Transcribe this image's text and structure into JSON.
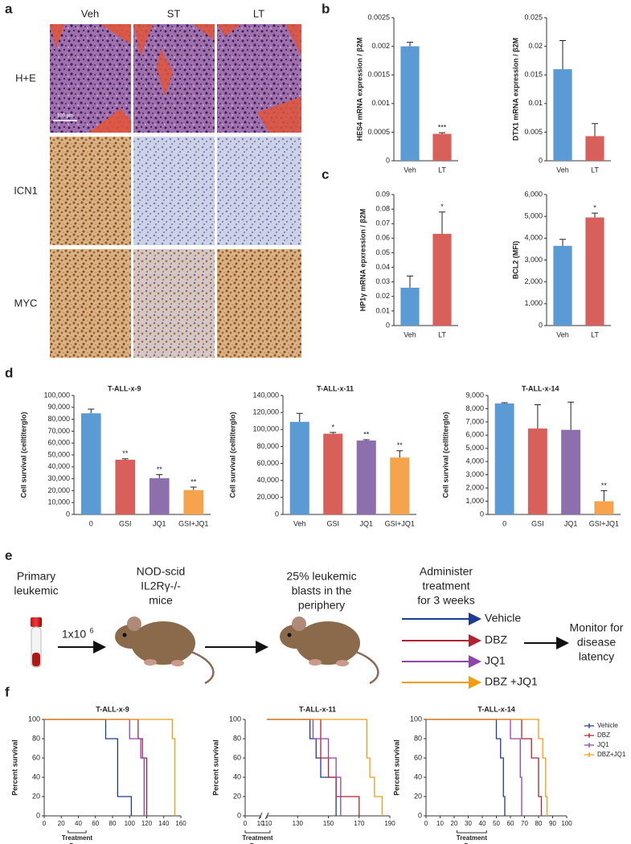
{
  "panel_labels": [
    "a",
    "b",
    "c",
    "d",
    "e",
    "f"
  ],
  "histology": {
    "columns": [
      "Veh",
      "ST",
      "LT"
    ],
    "rows": [
      "H+E",
      "ICN1",
      "MYC"
    ],
    "scale_bar": "100 µm"
  },
  "diagram": {
    "source": [
      "Primary",
      "leukemic"
    ],
    "mice": [
      "NOD-scid",
      "IL2Rγ-/-",
      "mice"
    ],
    "dose": "1x10",
    "dose_exp": "6",
    "engraft": [
      "25% leukemic",
      "blasts in the",
      "periphery"
    ],
    "treat": [
      "Administer",
      "treatment",
      "for 3 weeks"
    ],
    "arms": [
      "Vehicle",
      "DBZ",
      "JQ1",
      "DBZ +JQ1"
    ],
    "outcome": [
      "Monitor for",
      "disease",
      "latency"
    ]
  },
  "chart_data": [
    {
      "type": "bar",
      "ylabel": "HES4 mRNA expression / β2M",
      "categories": [
        "Veh",
        "LT"
      ],
      "values": [
        0.002,
        0.00047
      ],
      "errors": [
        7e-05,
        2e-05
      ],
      "colors": [
        "#5b9bd5",
        "#d9605a"
      ],
      "annotations": [
        {
          "index": 1,
          "text": "***"
        }
      ],
      "ylim": [
        0,
        0.0025
      ],
      "yticks": [
        0,
        0.0005,
        0.001,
        0.0015,
        0.002,
        0.0025
      ]
    },
    {
      "type": "bar",
      "ylabel": "DTX1 mRNA expression / β2M",
      "categories": [
        "Veh",
        "LT"
      ],
      "values": [
        0.016,
        0.0043
      ],
      "errors": [
        0.005,
        0.0022
      ],
      "colors": [
        "#5b9bd5",
        "#d9605a"
      ],
      "ylim": [
        0,
        0.025
      ],
      "yticks": [
        0,
        0.005,
        0.01,
        0.015,
        0.02,
        0.025
      ]
    },
    {
      "type": "bar",
      "ylabel": "HP1γ mRNA epxression / β2M",
      "categories": [
        "Veh",
        "LT"
      ],
      "values": [
        0.026,
        0.063
      ],
      "errors": [
        0.008,
        0.015
      ],
      "colors": [
        "#5b9bd5",
        "#d9605a"
      ],
      "annotations": [
        {
          "index": 1,
          "text": "*"
        }
      ],
      "ylim": [
        0,
        0.09
      ],
      "yticks": [
        0,
        0.01,
        0.02,
        0.03,
        0.04,
        0.05,
        0.06,
        0.07,
        0.08,
        0.09
      ]
    },
    {
      "type": "bar",
      "ylabel": "BCL2 (MFI)",
      "categories": [
        "Veh",
        "LT"
      ],
      "values": [
        3650,
        4950
      ],
      "errors": [
        300,
        200
      ],
      "colors": [
        "#5b9bd5",
        "#d9605a"
      ],
      "annotations": [
        {
          "index": 1,
          "text": "*"
        }
      ],
      "ylim": [
        0,
        6000
      ],
      "yticks": [
        0,
        {
          "value": 1000,
          "label": "1,000"
        },
        {
          "value": 2000,
          "label": "2,000"
        },
        {
          "value": 3000,
          "label": "3,000"
        },
        {
          "value": 4000,
          "label": "4,000"
        },
        {
          "value": 5000,
          "label": "5,000"
        },
        {
          "value": 6000,
          "label": "6,000"
        }
      ]
    },
    {
      "type": "bar",
      "title": "T-ALL-x-9",
      "ylabel": "Cell survival (celltiterglo)",
      "categories": [
        "0",
        "GSI",
        "JQ1",
        "GSI+JQ1"
      ],
      "values": [
        85000,
        46000,
        30500,
        20500
      ],
      "errors": [
        3500,
        800,
        3000,
        2500
      ],
      "colors": [
        "#5b9bd5",
        "#d9605a",
        "#8e6fad",
        "#f7a34b"
      ],
      "annotations": [
        {
          "index": 1,
          "text": "**"
        },
        {
          "index": 2,
          "text": "**"
        },
        {
          "index": 3,
          "text": "**"
        }
      ],
      "ylim": [
        0,
        100000
      ],
      "yticks": [
        0,
        {
          "value": 10000,
          "label": "10,000"
        },
        {
          "value": 20000,
          "label": "20,000"
        },
        {
          "value": 30000,
          "label": "30,000"
        },
        {
          "value": 40000,
          "label": "40,000"
        },
        {
          "value": 50000,
          "label": "50,000"
        },
        {
          "value": 60000,
          "label": "60,000"
        },
        {
          "value": 70000,
          "label": "70,000"
        },
        {
          "value": 80000,
          "label": "80,000"
        },
        {
          "value": 90000,
          "label": "90,000"
        },
        {
          "value": 100000,
          "label": "100,000"
        }
      ]
    },
    {
      "type": "bar",
      "title": "T-ALL-x-11",
      "ylabel": "Cell survival (celltiterglo)",
      "categories": [
        "Veh",
        "GSI",
        "JQ1",
        "GSI+JQ1"
      ],
      "values": [
        109000,
        95000,
        87000,
        67000
      ],
      "errors": [
        10000,
        1500,
        1000,
        8000
      ],
      "colors": [
        "#5b9bd5",
        "#d9605a",
        "#8e6fad",
        "#f7a34b"
      ],
      "annotations": [
        {
          "index": 1,
          "text": "*"
        },
        {
          "index": 2,
          "text": "**"
        },
        {
          "index": 3,
          "text": "**"
        }
      ],
      "ylim": [
        0,
        140000
      ],
      "yticks": [
        0,
        {
          "value": 20000,
          "label": "20,000"
        },
        {
          "value": 40000,
          "label": "40,000"
        },
        {
          "value": 60000,
          "label": "60,000"
        },
        {
          "value": 80000,
          "label": "80,000"
        },
        {
          "value": 100000,
          "label": "100,000"
        },
        {
          "value": 120000,
          "label": "120,000"
        },
        {
          "value": 140000,
          "label": "140,000"
        }
      ]
    },
    {
      "type": "bar",
      "title": "T-ALL-x-14",
      "ylabel": "Cell survival (celltiterglo)",
      "categories": [
        "0",
        "GSI",
        "JQ1",
        "GSI+JQ1"
      ],
      "values": [
        8400,
        6500,
        6400,
        1000
      ],
      "errors": [
        50,
        1800,
        2100,
        800
      ],
      "colors": [
        "#5b9bd5",
        "#d9605a",
        "#8e6fad",
        "#f7a34b"
      ],
      "annotations": [
        {
          "index": 3,
          "text": "**"
        }
      ],
      "ylim": [
        0,
        9000
      ],
      "yticks": [
        0,
        {
          "value": 1000,
          "label": "1,000"
        },
        {
          "value": 2000,
          "label": "2,000"
        },
        {
          "value": 3000,
          "label": "3,000"
        },
        {
          "value": 4000,
          "label": "4,000"
        },
        {
          "value": 5000,
          "label": "5,000"
        },
        {
          "value": 6000,
          "label": "6,000"
        },
        {
          "value": 7000,
          "label": "7,000"
        },
        {
          "value": 8000,
          "label": "8,000"
        },
        {
          "value": 9000,
          "label": "9,000"
        }
      ]
    },
    {
      "type": "step",
      "title": "T-ALL-x-9",
      "xlabel": "Days",
      "ylabel": "Percent survival",
      "treatment": {
        "label": "Treatment",
        "range": [
          28,
          49
        ]
      },
      "series": [
        {
          "color": "#1f3a93",
          "x": [
            0,
            72,
            86,
            102
          ],
          "values": [
            100,
            80,
            20,
            0
          ]
        },
        {
          "color": "#b22234",
          "x": [
            0,
            110,
            115,
            120
          ],
          "values": [
            100,
            80,
            60,
            0
          ]
        },
        {
          "color": "#8e44ad",
          "x": [
            0,
            100,
            113,
            117
          ],
          "values": [
            100,
            80,
            60,
            0
          ]
        },
        {
          "color": "#f39c12",
          "x": [
            0,
            150,
            153
          ],
          "values": [
            100,
            80,
            0
          ]
        }
      ],
      "xlim": [
        0,
        160
      ],
      "xticks": [
        0,
        20,
        40,
        60,
        80,
        100,
        120,
        140,
        160
      ],
      "ylim": [
        0,
        100
      ],
      "yticks": [
        0,
        20,
        40,
        60,
        80,
        100
      ]
    },
    {
      "type": "step",
      "title": "T-ALL-x-11",
      "xlabel": "Days",
      "ylabel": "Percent survival",
      "treatment": {
        "label": "Treatment",
        "range": [
          0,
          112
        ]
      },
      "x_break": [
        10,
        110
      ],
      "series": [
        {
          "color": "#1f3a93",
          "x": [
            110,
            138,
            142,
            145,
            155
          ],
          "values": [
            100,
            80,
            60,
            40,
            0
          ]
        },
        {
          "color": "#b22234",
          "x": [
            110,
            145,
            150,
            155,
            170
          ],
          "values": [
            100,
            60,
            40,
            20,
            0
          ]
        },
        {
          "color": "#8e44ad",
          "x": [
            110,
            140,
            150,
            155,
            158
          ],
          "values": [
            100,
            80,
            60,
            40,
            0
          ]
        },
        {
          "color": "#f39c12",
          "x": [
            110,
            175,
            177,
            180,
            185
          ],
          "values": [
            100,
            60,
            40,
            20,
            0
          ]
        }
      ],
      "xlim": [
        0,
        190
      ],
      "xticks": [
        0,
        10,
        110,
        130,
        150,
        170,
        190
      ],
      "ylim": [
        0,
        100
      ],
      "yticks": [
        0,
        20,
        40,
        60,
        80,
        100
      ]
    },
    {
      "type": "step",
      "title": "T-ALL-x-14",
      "xlabel": "Days",
      "ylabel": "Percent survival",
      "treatment": {
        "label": "Treatment",
        "range": [
          22,
          43
        ]
      },
      "legend": "right",
      "series": [
        {
          "name": "Vehicle",
          "color": "#1f3a93",
          "x": [
            0,
            50,
            53,
            55,
            56
          ],
          "values": [
            100,
            80,
            60,
            20,
            0
          ]
        },
        {
          "name": "DBZ",
          "color": "#b22234",
          "x": [
            0,
            68,
            75,
            80,
            82
          ],
          "values": [
            100,
            80,
            60,
            20,
            0
          ]
        },
        {
          "name": "JQ1",
          "color": "#8e44ad",
          "x": [
            0,
            60,
            67,
            68
          ],
          "values": [
            100,
            80,
            40,
            0
          ]
        },
        {
          "name": "DBZ+JQ1",
          "color": "#f39c12",
          "x": [
            0,
            80,
            83,
            85,
            86
          ],
          "values": [
            100,
            80,
            60,
            20,
            0
          ]
        }
      ],
      "xlim": [
        0,
        100
      ],
      "xticks": [
        0,
        10,
        20,
        30,
        40,
        50,
        60,
        70,
        80,
        90,
        100
      ],
      "ylim": [
        0,
        100
      ],
      "yticks": [
        0,
        20,
        40,
        60,
        80,
        100
      ]
    }
  ]
}
